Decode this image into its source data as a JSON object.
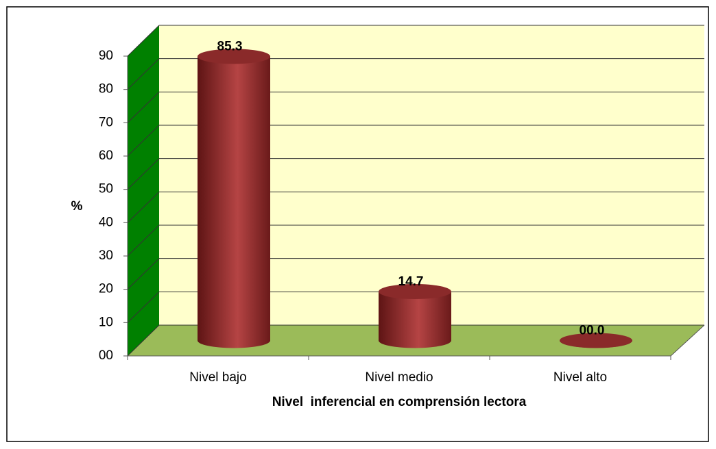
{
  "chart_data": {
    "type": "bar",
    "categories": [
      "Nivel bajo",
      "Nivel medio",
      "Nivel alto"
    ],
    "values": [
      85.3,
      14.7,
      0.0
    ],
    "value_labels": [
      "85.3",
      "14.7",
      "00.0"
    ],
    "color": "#9e3535",
    "ylim": [
      0,
      90
    ],
    "yticks": [
      {
        "value": 0,
        "label": "00"
      },
      10,
      20,
      30,
      40,
      50,
      60,
      70,
      80,
      90
    ],
    "ylabel": "%",
    "xlabel": "Nivel  inferencial en comprensión lectora",
    "grid": true
  }
}
